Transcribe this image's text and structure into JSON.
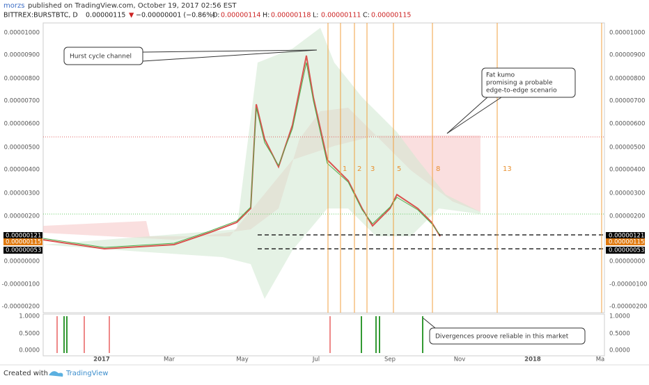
{
  "header": {
    "author": "morzs",
    "published": "published on TradingView.com, October 19, 2017 02:56 EST"
  },
  "symbol": {
    "name": "BITTREX:BURSTBTC, D",
    "last": "0.00000115",
    "arrow": "▼",
    "change": "−0.00000001 (−0.86%)",
    "ohlc": [
      {
        "label": "O:",
        "value": "0.00000114"
      },
      {
        "label": "H:",
        "value": "0.00000118"
      },
      {
        "label": "L:",
        "value": "0.00000111"
      },
      {
        "label": "C:",
        "value": "0.00000115"
      }
    ]
  },
  "price_axis": [
    "0.00001000",
    "0.00000900",
    "0.00000800",
    "0.00000700",
    "0.00000600",
    "0.00000500",
    "0.00000400",
    "0.00000300",
    "0.00000200",
    "0.00000000",
    "-0.00000100",
    "-0.00000200"
  ],
  "price_markers": [
    "0.00000121",
    "0.00000115",
    "0.00000053"
  ],
  "indicator_axis": [
    "1.0000",
    "0.5000",
    "0.0000"
  ],
  "time_axis": [
    "2017",
    "Mar",
    "May",
    "Jul",
    "Sep",
    "Nov",
    "2018",
    "Ma"
  ],
  "cycles": [
    "1",
    "2",
    "3",
    "5",
    "8",
    "13"
  ],
  "annotations": {
    "hurst": "Hurst cycle channel",
    "kumo": [
      "Fat kumo",
      "promising a probable",
      "edge-to-edge scenario"
    ],
    "divergence": "Divergences proove reliable in this market"
  },
  "footer": {
    "created": "Created with",
    "brand": "TradingView"
  }
}
